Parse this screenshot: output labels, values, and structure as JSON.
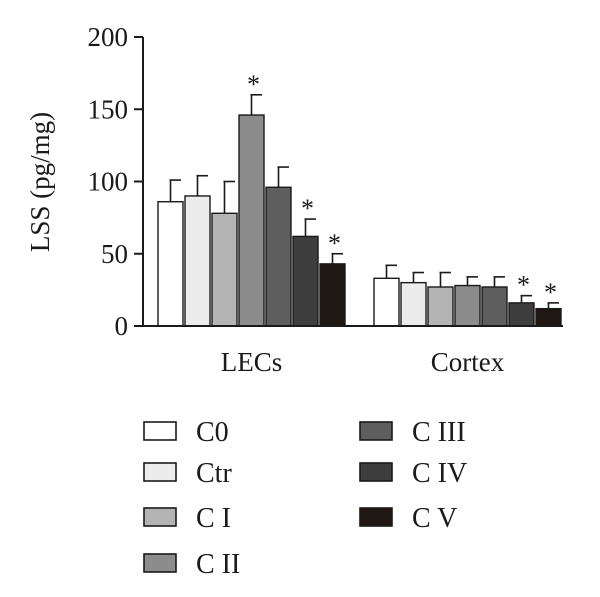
{
  "chart_data": {
    "type": "bar",
    "ylabel": "LSS (pg/mg)",
    "ylim": [
      0,
      200
    ],
    "yticks": [
      0,
      50,
      100,
      150,
      200
    ],
    "categories": [
      "LECs",
      "Cortex"
    ],
    "series": [
      {
        "name": "C0",
        "color": "#ffffff",
        "values": [
          86,
          33
        ],
        "errors": [
          15,
          9
        ],
        "sig": [
          false,
          false
        ]
      },
      {
        "name": "Ctr",
        "color": "#ececec",
        "values": [
          90,
          30
        ],
        "errors": [
          14,
          7
        ],
        "sig": [
          false,
          false
        ]
      },
      {
        "name": "C I",
        "color": "#b4b4b4",
        "values": [
          78,
          27
        ],
        "errors": [
          22,
          10
        ],
        "sig": [
          false,
          false
        ]
      },
      {
        "name": "C II",
        "color": "#8c8c8c",
        "values": [
          146,
          28
        ],
        "errors": [
          14,
          6
        ],
        "sig": [
          true,
          false
        ]
      },
      {
        "name": "C III",
        "color": "#5e5e5e",
        "values": [
          96,
          27
        ],
        "errors": [
          14,
          7
        ],
        "sig": [
          false,
          false
        ]
      },
      {
        "name": "C IV",
        "color": "#3e3e3e",
        "values": [
          62,
          16
        ],
        "errors": [
          12,
          5
        ],
        "sig": [
          true,
          true
        ]
      },
      {
        "name": "C V",
        "color": "#1e1713",
        "values": [
          43,
          12
        ],
        "errors": [
          7,
          4
        ],
        "sig": [
          true,
          true
        ]
      }
    ],
    "significance_marker": "*",
    "legend_position": "bottom"
  }
}
